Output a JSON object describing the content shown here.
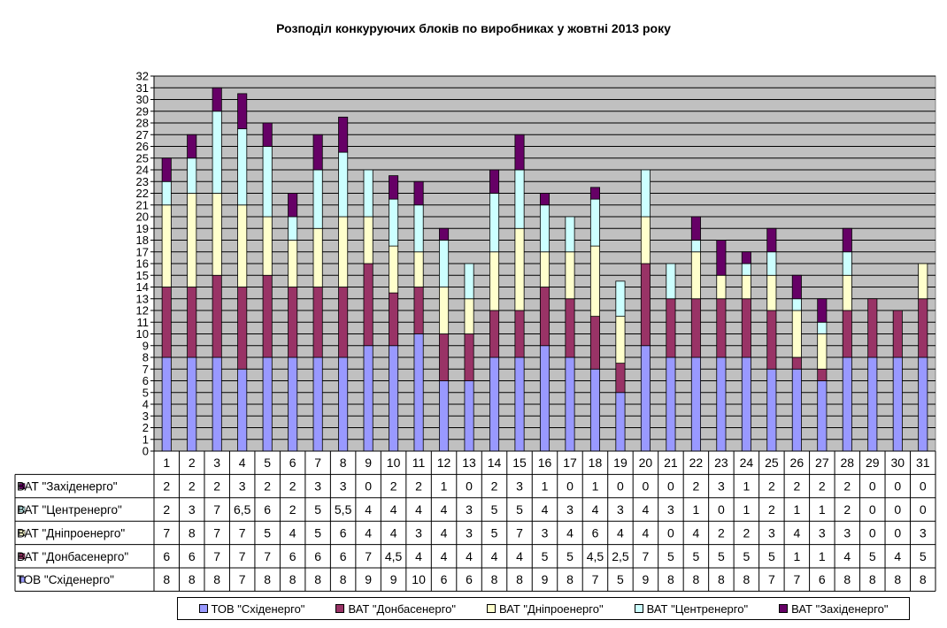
{
  "chart_data": {
    "type": "bar",
    "stacked": true,
    "title": "Розподіл конкуруючих блоків по виробниках у жовтні 2013 року",
    "categories": [
      "1",
      "2",
      "3",
      "4",
      "5",
      "6",
      "7",
      "8",
      "9",
      "10",
      "11",
      "12",
      "13",
      "14",
      "15",
      "16",
      "17",
      "18",
      "19",
      "20",
      "21",
      "22",
      "23",
      "24",
      "25",
      "26",
      "27",
      "28",
      "29",
      "30",
      "31"
    ],
    "ylim": [
      0,
      32
    ],
    "yticks": [
      "0",
      "1",
      "2",
      "3",
      "4",
      "5",
      "6",
      "7",
      "8",
      "9",
      "10",
      "11",
      "12",
      "13",
      "14",
      "15",
      "16",
      "17",
      "18",
      "19",
      "20",
      "21",
      "22",
      "23",
      "24",
      "25",
      "26",
      "27",
      "28",
      "29",
      "30",
      "31",
      "32"
    ],
    "grid": true,
    "legend_position": "bottom",
    "series": [
      {
        "name": "ТОВ \"Східенерго\"",
        "color": "#9999ff",
        "values": [
          8,
          8,
          8,
          7,
          8,
          8,
          8,
          8,
          9,
          9,
          10,
          6,
          6,
          8,
          8,
          9,
          8,
          7,
          5,
          9,
          8,
          8,
          8,
          8,
          7,
          7,
          6,
          8,
          8,
          8,
          8
        ],
        "labels": [
          "8",
          "8",
          "8",
          "7",
          "8",
          "8",
          "8",
          "8",
          "9",
          "9",
          "10",
          "6",
          "6",
          "8",
          "8",
          "9",
          "8",
          "7",
          "5",
          "9",
          "8",
          "8",
          "8",
          "8",
          "7",
          "7",
          "6",
          "8",
          "8",
          "8",
          "8"
        ]
      },
      {
        "name": "ВАТ \"Донбасенерго\"",
        "color": "#993366",
        "values": [
          6,
          6,
          7,
          7,
          7,
          6,
          6,
          6,
          7,
          4.5,
          4,
          4,
          4,
          4,
          4,
          5,
          5,
          4.5,
          2.5,
          7,
          5,
          5,
          5,
          5,
          5,
          1,
          1,
          4,
          5,
          4,
          5
        ],
        "labels": [
          "6",
          "6",
          "7",
          "7",
          "7",
          "6",
          "6",
          "6",
          "7",
          "4,5",
          "4",
          "4",
          "4",
          "4",
          "4",
          "5",
          "5",
          "4,5",
          "2,5",
          "7",
          "5",
          "5",
          "5",
          "5",
          "5",
          "1",
          "1",
          "4",
          "5",
          "4",
          "5"
        ]
      },
      {
        "name": "ВАТ \"Дніпроенерго\"",
        "color": "#ffffcc",
        "values": [
          7,
          8,
          7,
          7,
          5,
          4,
          5,
          6,
          4,
          4,
          3,
          4,
          3,
          5,
          7,
          3,
          4,
          6,
          4,
          4,
          0,
          4,
          2,
          2,
          3,
          4,
          3,
          3,
          0,
          0,
          3
        ],
        "labels": [
          "7",
          "8",
          "7",
          "7",
          "5",
          "4",
          "5",
          "6",
          "4",
          "4",
          "3",
          "4",
          "3",
          "5",
          "7",
          "3",
          "4",
          "6",
          "4",
          "4",
          "0",
          "4",
          "2",
          "2",
          "3",
          "4",
          "3",
          "3",
          "0",
          "0",
          "3"
        ]
      },
      {
        "name": "ВАТ \"Центренерго\"",
        "color": "#ccffff",
        "values": [
          2,
          3,
          7,
          6.5,
          6,
          2,
          5,
          5.5,
          4,
          4,
          4,
          4,
          3,
          5,
          5,
          4,
          3,
          4,
          3,
          4,
          3,
          1,
          0,
          1,
          2,
          1,
          1,
          2,
          0,
          0,
          0
        ],
        "labels": [
          "2",
          "3",
          "7",
          "6,5",
          "6",
          "2",
          "5",
          "5,5",
          "4",
          "4",
          "4",
          "4",
          "3",
          "5",
          "5",
          "4",
          "3",
          "4",
          "3",
          "4",
          "3",
          "1",
          "0",
          "1",
          "2",
          "1",
          "1",
          "2",
          "0",
          "0",
          "0"
        ]
      },
      {
        "name": "ВАТ \"Західенерго\"",
        "color": "#660066",
        "values": [
          2,
          2,
          2,
          3,
          2,
          2,
          3,
          3,
          0,
          2,
          2,
          1,
          0,
          2,
          3,
          1,
          0,
          1,
          0,
          0,
          0,
          2,
          3,
          1,
          2,
          2,
          2,
          2,
          0,
          0,
          0
        ],
        "labels": [
          "2",
          "2",
          "2",
          "3",
          "2",
          "2",
          "3",
          "3",
          "0",
          "2",
          "2",
          "1",
          "0",
          "2",
          "3",
          "1",
          "0",
          "1",
          "0",
          "0",
          "0",
          "2",
          "3",
          "1",
          "2",
          "2",
          "2",
          "2",
          "0",
          "0",
          "0"
        ]
      }
    ],
    "table_row_order": [
      4,
      3,
      2,
      1,
      0
    ]
  }
}
